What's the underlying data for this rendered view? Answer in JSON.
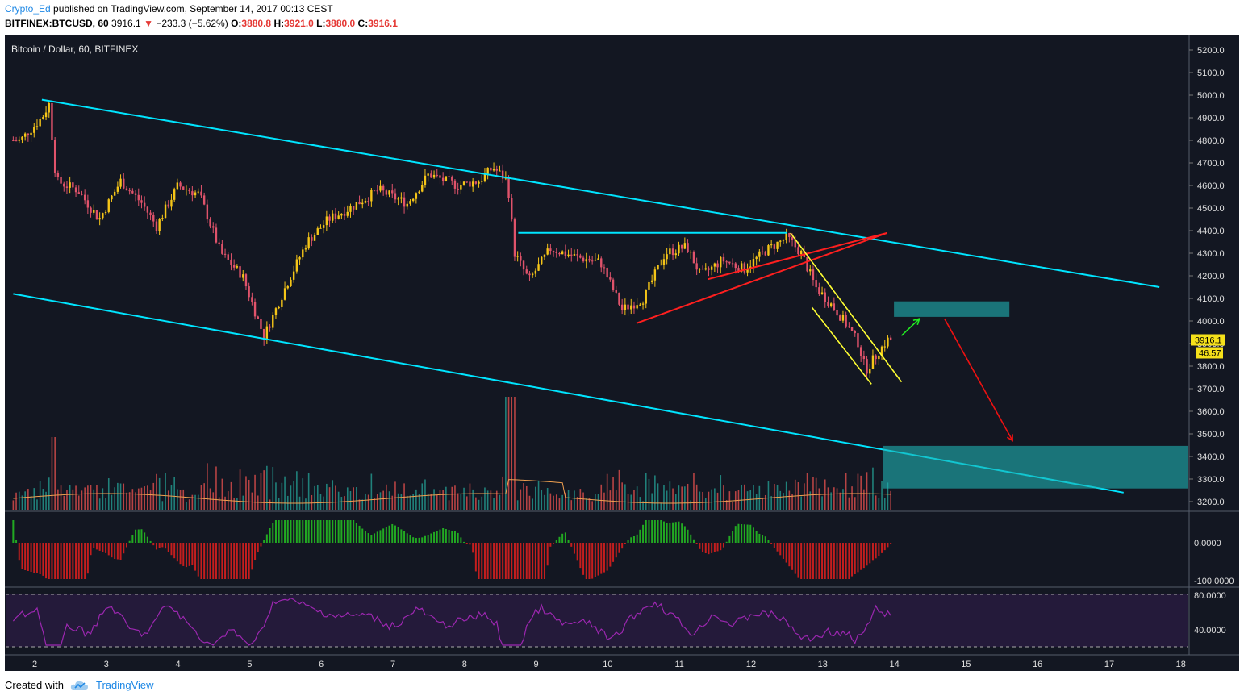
{
  "header": {
    "author": "Crypto_Ed",
    "published": "published on TradingView.com, September 14, 2017 00:13 CEST",
    "symbol": "BITFINEX:BTCUSD, 60",
    "last": "3916.1",
    "change_symbol": "▼",
    "change": "−233.3 (−5.62%)",
    "o_label": "O:",
    "o": "3880.8",
    "h_label": "H:",
    "h": "3921.0",
    "l_label": "L:",
    "l": "3880.0",
    "c_label": "C:",
    "c": "3916.1"
  },
  "footer": {
    "created_with": "Created with",
    "brand": "TradingView"
  },
  "chart_data": {
    "type": "candlestick",
    "title": "Bitcoin / Dollar, 60, BITFINEX",
    "ylim": [
      3150,
      5250
    ],
    "y_ticks": [
      "5200.0",
      "5100.0",
      "5000.0",
      "4900.0",
      "4800.0",
      "4700.0",
      "4600.0",
      "4500.0",
      "4400.0",
      "4300.0",
      "4200.0",
      "4100.0",
      "4000.0",
      "3900.0",
      "3800.0",
      "3700.0",
      "3600.0",
      "3500.0",
      "3400.0",
      "3300.0",
      "3200.0"
    ],
    "x_ticks": [
      "2",
      "3",
      "4",
      "5",
      "6",
      "7",
      "8",
      "9",
      "10",
      "11",
      "12",
      "13",
      "14",
      "15",
      "16",
      "17",
      "18"
    ],
    "last_price_label": "3916.1",
    "last_price": 3916.1,
    "volume_label": "46.57",
    "price_path": [
      {
        "day": 1.8,
        "price": 4800
      },
      {
        "day": 2.1,
        "price": 4900
      },
      {
        "day": 2.2,
        "price": 4960
      },
      {
        "day": 2.3,
        "price": 4620
      },
      {
        "day": 2.6,
        "price": 4580
      },
      {
        "day": 2.9,
        "price": 4450
      },
      {
        "day": 3.2,
        "price": 4620
      },
      {
        "day": 3.5,
        "price": 4520
      },
      {
        "day": 3.7,
        "price": 4420
      },
      {
        "day": 4.0,
        "price": 4600
      },
      {
        "day": 4.3,
        "price": 4560
      },
      {
        "day": 4.6,
        "price": 4300
      },
      {
        "day": 4.9,
        "price": 4200
      },
      {
        "day": 5.2,
        "price": 3930
      },
      {
        "day": 5.5,
        "price": 4150
      },
      {
        "day": 5.8,
        "price": 4350
      },
      {
        "day": 6.1,
        "price": 4450
      },
      {
        "day": 6.4,
        "price": 4500
      },
      {
        "day": 6.8,
        "price": 4580
      },
      {
        "day": 7.2,
        "price": 4520
      },
      {
        "day": 7.5,
        "price": 4650
      },
      {
        "day": 7.9,
        "price": 4600
      },
      {
        "day": 8.2,
        "price": 4620
      },
      {
        "day": 8.4,
        "price": 4680
      },
      {
        "day": 8.6,
        "price": 4620
      },
      {
        "day": 8.7,
        "price": 4300
      },
      {
        "day": 8.9,
        "price": 4180
      },
      {
        "day": 9.2,
        "price": 4320
      },
      {
        "day": 9.6,
        "price": 4280
      },
      {
        "day": 9.9,
        "price": 4260
      },
      {
        "day": 10.2,
        "price": 4050
      },
      {
        "day": 10.5,
        "price": 4100
      },
      {
        "day": 10.8,
        "price": 4300
      },
      {
        "day": 11.1,
        "price": 4330
      },
      {
        "day": 11.3,
        "price": 4200
      },
      {
        "day": 11.6,
        "price": 4270
      },
      {
        "day": 11.9,
        "price": 4230
      },
      {
        "day": 12.2,
        "price": 4310
      },
      {
        "day": 12.5,
        "price": 4370
      },
      {
        "day": 12.7,
        "price": 4300
      },
      {
        "day": 12.9,
        "price": 4150
      },
      {
        "day": 13.1,
        "price": 4080
      },
      {
        "day": 13.3,
        "price": 4000
      },
      {
        "day": 13.5,
        "price": 3900
      },
      {
        "day": 13.6,
        "price": 3780
      },
      {
        "day": 13.75,
        "price": 3850
      },
      {
        "day": 13.9,
        "price": 3916
      }
    ],
    "lower_panels": {
      "oscillator_ticks": [
        "0.0000",
        "-100.0000"
      ],
      "rsi_ticks": [
        "80.0000",
        "40.0000"
      ]
    }
  },
  "colors": {
    "background": "#131722",
    "up": "#f5c518",
    "down": "#e0536b",
    "trendline": "#00e5ff",
    "zone": "#1fb3b3",
    "wedge": "#ff1f1f",
    "flag": "#ffff33",
    "arrow_up": "#22ee22",
    "arrow_down": "#ee1111",
    "rsi": "#9c27b0",
    "osc_up": "#22aa22",
    "osc_down": "#c41e1e"
  }
}
